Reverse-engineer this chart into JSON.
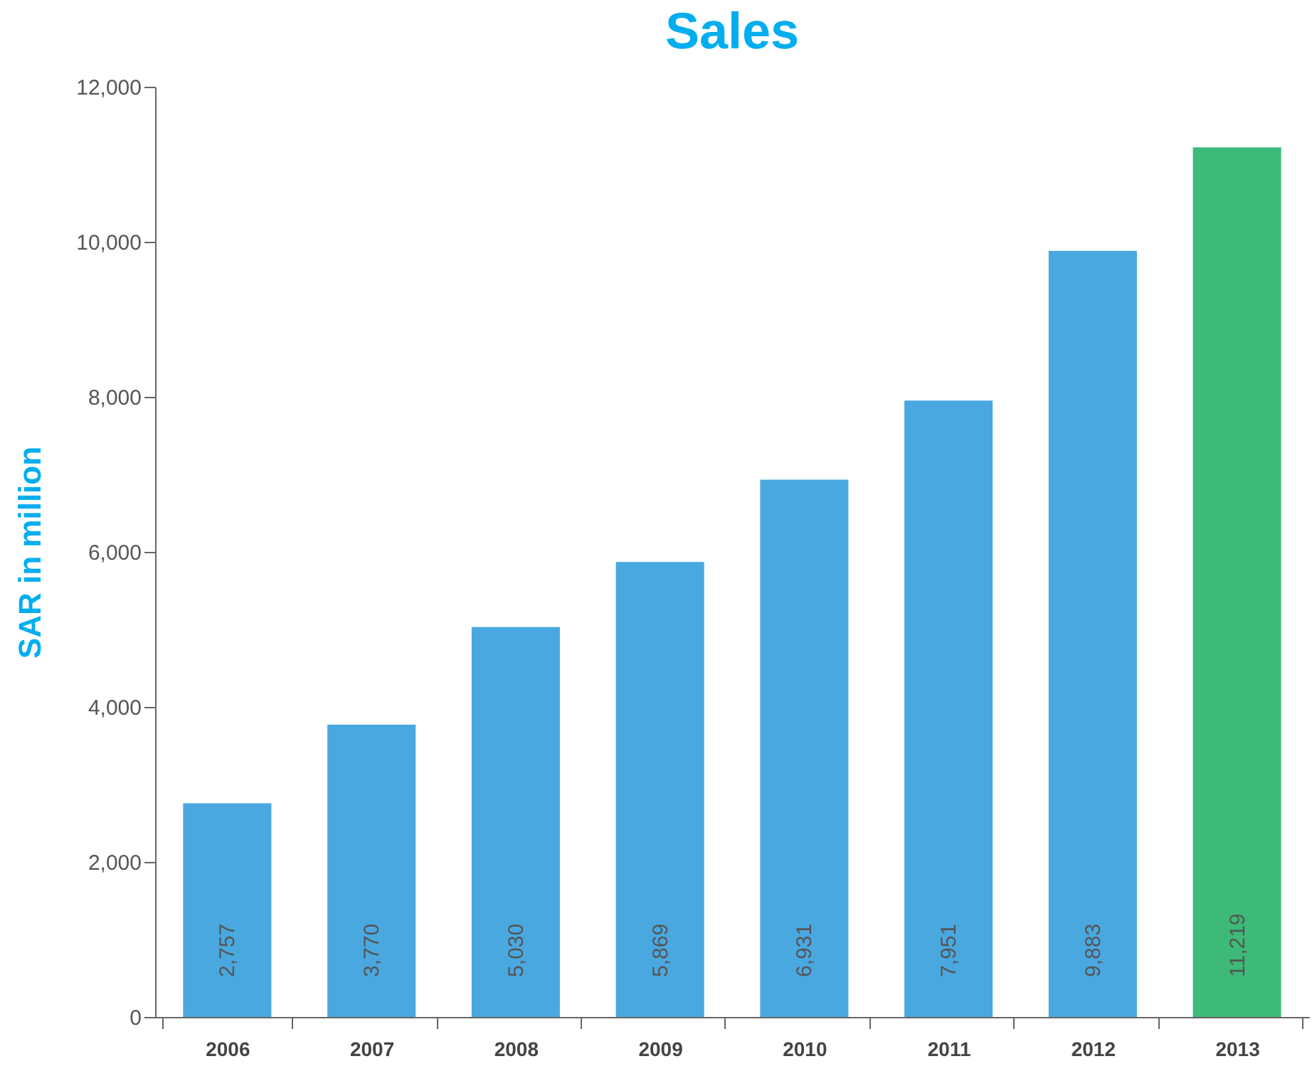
{
  "chart_data": {
    "type": "bar",
    "title": "Sales",
    "ylabel": "SAR in million",
    "categories": [
      "2006",
      "2007",
      "2008",
      "2009",
      "2010",
      "2011",
      "2012",
      "2013"
    ],
    "values": [
      2757,
      3770,
      5030,
      5869,
      6931,
      7951,
      9883,
      11219
    ],
    "value_labels": [
      "2,757",
      "3,770",
      "5,030",
      "5,869",
      "6,931",
      "7,951",
      "9,883",
      "11,219"
    ],
    "colors": [
      "#4aa8e0",
      "#4aa8e0",
      "#4aa8e0",
      "#4aa8e0",
      "#4aa8e0",
      "#4aa8e0",
      "#4aa8e0",
      "#3dba78"
    ],
    "ylim": [
      0,
      12000
    ],
    "yticks": [
      {
        "value": 0,
        "label": "0"
      },
      {
        "value": 2000,
        "label": "2,000"
      },
      {
        "value": 4000,
        "label": "4,000"
      },
      {
        "value": 6000,
        "label": "6,000"
      },
      {
        "value": 8000,
        "label": "8,000"
      },
      {
        "value": 10000,
        "label": "10,000"
      },
      {
        "value": 12000,
        "label": "12,000"
      }
    ],
    "grid": false
  }
}
